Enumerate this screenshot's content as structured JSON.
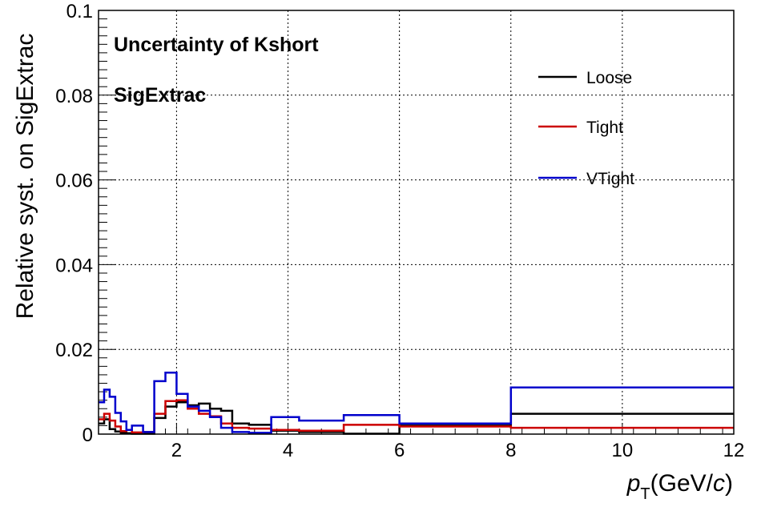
{
  "chart_data": {
    "type": "line",
    "title": "",
    "xlabel": "p_T (GeV/c)",
    "xlabel_main": "p",
    "xlabel_sub": "T",
    "xlabel_rest": "(GeV/",
    "xlabel_c": "c",
    "xlabel_close": ")",
    "ylabel": "Relative syst. on SigExtrac",
    "xlim": [
      0.6,
      12
    ],
    "ylim": [
      0,
      0.1
    ],
    "xticks": [
      2,
      4,
      6,
      8,
      10,
      12
    ],
    "xtick_labels": [
      "2",
      "4",
      "6",
      "8",
      "10",
      "12"
    ],
    "yticks": [
      0,
      0.02,
      0.04,
      0.06,
      0.08,
      0.1
    ],
    "ytick_labels": [
      "0",
      "0.02",
      "0.04",
      "0.06",
      "0.08",
      "0.1"
    ],
    "grid": true,
    "legend_position": "top-right",
    "annotations": [
      "Uncertainty of Kshort",
      "SigExtrac"
    ],
    "bin_edges": [
      0.6,
      0.7,
      0.8,
      0.9,
      1.0,
      1.1,
      1.2,
      1.4,
      1.6,
      1.8,
      2.0,
      2.2,
      2.4,
      2.6,
      2.8,
      3.0,
      3.3,
      3.7,
      4.2,
      5.0,
      6.0,
      8.0,
      12.0
    ],
    "series": [
      {
        "name": "Loose",
        "color": "#000000",
        "values": [
          0.0025,
          0.0035,
          0.0012,
          0.0006,
          0.0003,
          0.0002,
          0.0001,
          0.0001,
          0.0038,
          0.0065,
          0.0075,
          0.0068,
          0.0072,
          0.006,
          0.0055,
          0.0025,
          0.0022,
          0.0008,
          0.0005,
          0.0001,
          0.002,
          0.0048
        ]
      },
      {
        "name": "Tight",
        "color": "#cc0000",
        "values": [
          0.0035,
          0.0048,
          0.0032,
          0.0018,
          0.0007,
          0.001,
          0.0004,
          0.0005,
          0.0048,
          0.0078,
          0.008,
          0.006,
          0.0048,
          0.0042,
          0.0025,
          0.0015,
          0.0013,
          0.001,
          0.0008,
          0.0022,
          0.0018,
          0.0015
        ]
      },
      {
        "name": "VTight",
        "color": "#0000cc",
        "values": [
          0.0075,
          0.0105,
          0.0088,
          0.005,
          0.003,
          0.001,
          0.002,
          0.0005,
          0.0125,
          0.0145,
          0.0095,
          0.0065,
          0.0055,
          0.004,
          0.0015,
          0.0005,
          0.0003,
          0.004,
          0.0032,
          0.0045,
          0.0025,
          0.011
        ]
      }
    ]
  }
}
